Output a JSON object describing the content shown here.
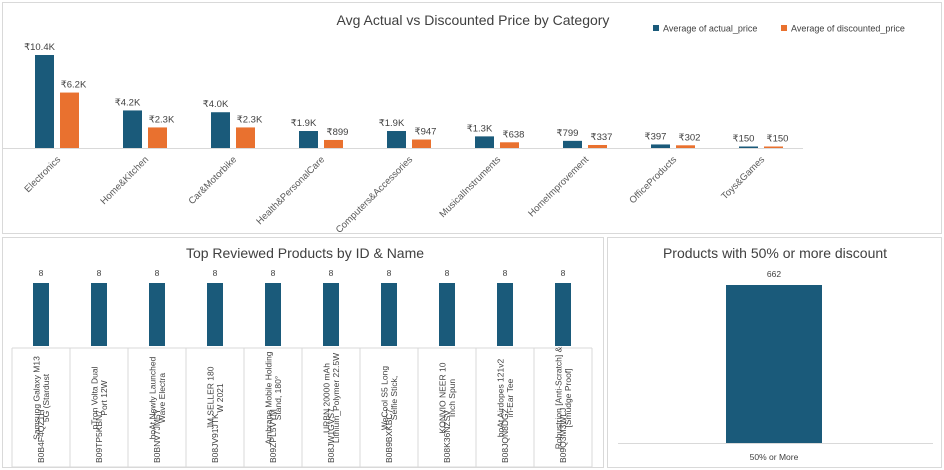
{
  "chart_data": [
    {
      "type": "bar",
      "title": "Avg Actual vs Discounted Price by Category",
      "categories": [
        "Electronics",
        "Home&Kitchen",
        "Car&Motorbike",
        "Health&PersonalCare",
        "Computers&Accessories",
        "MusicalInstruments",
        "HomeImprovement",
        "OfficeProducts",
        "Toys&Games"
      ],
      "series": [
        {
          "name": "Average of actual_price",
          "color": "#1a5a7a",
          "values": [
            10400,
            4200,
            4000,
            1900,
            1900,
            1300,
            799,
            397,
            150
          ],
          "labels": [
            "₹10.4K",
            "₹4.2K",
            "₹4.0K",
            "₹1.9K",
            "₹1.9K",
            "₹1.3K",
            "₹799",
            "₹397",
            "₹150"
          ]
        },
        {
          "name": "Average of discounted_price",
          "color": "#e9712f",
          "values": [
            6200,
            2300,
            2300,
            899,
            947,
            638,
            337,
            302,
            150
          ],
          "labels": [
            "₹6.2K",
            "₹2.3K",
            "₹2.3K",
            "₹899",
            "₹947",
            "₹638",
            "₹337",
            "₹302",
            "₹150"
          ]
        }
      ],
      "legend": "top-right",
      "ylim": [
        0,
        10400
      ]
    },
    {
      "type": "bar",
      "title": "Top Reviewed Products by ID & Name",
      "categories": [
        {
          "id": "B0B4F4QZ1H",
          "name": "Samsung Galaxy M13 5G (Stardust"
        },
        {
          "id": "B09TP5KBN7",
          "name": "pTron Volta Dual Port 12W"
        },
        {
          "id": "B0BNV7JM5Y",
          "name": "boAt Newly Launched Wave Electra"
        },
        {
          "id": "B08JV91JTK",
          "name": "JM SELLER 180 W 2021"
        },
        {
          "id": "B09ZPL5VYM",
          "name": "Ambrane Mobile Holding Stand, 180°"
        },
        {
          "id": "B08JW1GVS7",
          "name": "URBN 20000 mAh Lithium_Polymer 22.5W"
        },
        {
          "id": "B0B9BXKBC7",
          "name": "WeCool S5 Long Selfie Stick,"
        },
        {
          "id": "B08K36NZSV",
          "name": "KONVIO NEER 10 Inch Spun"
        },
        {
          "id": "B08JQN8DGZ",
          "name": "boAt Airdopes 121v2 in-Ear Tee"
        },
        {
          "id": "B09Q3M3WLJ",
          "name": "Robustrion [Anti-Scratch] & [Smudge Proof]"
        }
      ],
      "values": [
        8,
        8,
        8,
        8,
        8,
        8,
        8,
        8,
        8,
        8
      ],
      "color": "#1a5a7a",
      "ylim": [
        0,
        8
      ]
    },
    {
      "type": "bar",
      "title": "Products with 50% or more discount",
      "categories": [
        "50% or More"
      ],
      "values": [
        662
      ],
      "color": "#1a5a7a",
      "ylim": [
        0,
        662
      ]
    }
  ]
}
